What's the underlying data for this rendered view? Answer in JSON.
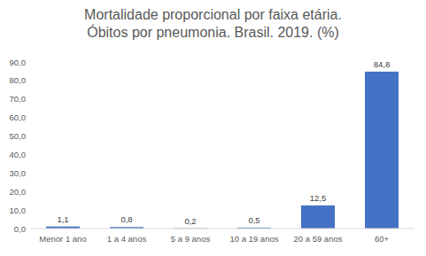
{
  "chart_data": {
    "type": "bar",
    "title": "Mortalidade proporcional por faixa etária. Óbitos por pneumonia. Brasil. 2019. (%)",
    "categories": [
      "Menor 1 ano",
      "1 a 4 anos",
      "5 a 9 anos",
      "10 a 19 anos",
      "20 a 59 anos",
      "60+"
    ],
    "values": [
      1.1,
      0.8,
      0.2,
      0.5,
      12.5,
      84.8
    ],
    "value_labels": [
      "1,1",
      "0,8",
      "0,2",
      "0,5",
      "12,5",
      "84,8"
    ],
    "color": "#4472c4",
    "ylim": [
      0,
      90
    ],
    "yticks": [
      {
        "value": 0,
        "label": "0,0"
      },
      {
        "value": 10,
        "label": "10,0"
      },
      {
        "value": 20,
        "label": "20,0"
      },
      {
        "value": 30,
        "label": "30,0"
      },
      {
        "value": 40,
        "label": "40,0"
      },
      {
        "value": 50,
        "label": "50,0"
      },
      {
        "value": 60,
        "label": "60,0"
      },
      {
        "value": 70,
        "label": "70,0"
      },
      {
        "value": 80,
        "label": "80,0"
      },
      {
        "value": 90,
        "label": "90,0"
      }
    ],
    "grid": false,
    "data_labels": true
  }
}
